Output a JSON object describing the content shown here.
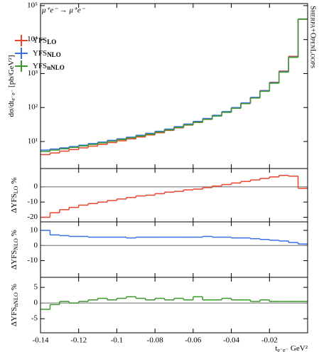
{
  "chart_data": [
    {
      "type": "histogram",
      "log": true,
      "process": "μ⁺e⁻ → μ⁺e⁻",
      "watermark": "Sherpa+OpenLoops",
      "ylabel": {
        "text": "dσ/dt",
        "subscript": "e⁻e⁻",
        "suffix": "[pb/GeV²]"
      },
      "xlabel": {
        "text": "t",
        "subscript": "e⁻e⁻",
        "suffix": "GeV²"
      },
      "bins": [
        -0.14,
        -0.135,
        -0.13,
        -0.125,
        -0.12,
        -0.115,
        -0.11,
        -0.105,
        -0.1,
        -0.095,
        -0.09,
        -0.085,
        -0.08,
        -0.075,
        -0.07,
        -0.065,
        -0.06,
        -0.055,
        -0.05,
        -0.045,
        -0.04,
        -0.035,
        -0.03,
        -0.025,
        -0.02,
        -0.015,
        -0.01,
        -0.005,
        0
      ],
      "xlim": [
        -0.14,
        0
      ],
      "xticks": [
        -0.14,
        -0.12,
        -0.1,
        -0.08,
        -0.06,
        -0.04,
        -0.02
      ],
      "ylim": [
        1.6,
        115000
      ],
      "yticks": [
        {
          "value": 10,
          "label": "10¹"
        },
        {
          "value": 100,
          "label": "10²"
        },
        {
          "value": 1000,
          "label": "10³"
        },
        {
          "value": 10000,
          "label": "10⁴"
        },
        {
          "value": 100000,
          "label": "10⁵"
        }
      ],
      "legend": "upper left",
      "series": [
        {
          "name": "YFS",
          "subscript": "LO",
          "color": "#e8452c",
          "values": [
            4.1,
            4.6,
            5.2,
            5.8,
            6.5,
            7.3,
            8.2,
            9.3,
            10.5,
            11.9,
            13.6,
            15.6,
            18.1,
            21.2,
            25.2,
            30.4,
            36.4,
            44.8,
            56.3,
            73.1,
            97.4,
            134.6,
            198.6,
            316.5,
            553.8,
            1182.5,
            3210,
            39600
          ]
        },
        {
          "name": "YFS",
          "subscript": "NLO",
          "color": "#3a6fe8",
          "values": [
            5.6,
            6.0,
            6.5,
            7.1,
            7.8,
            8.7,
            9.6,
            10.8,
            12.0,
            13.4,
            15.3,
            17.4,
            20,
            23.2,
            27.4,
            32.7,
            39,
            47.7,
            59.1,
            76,
            99.8,
            136.5,
            198.6,
            312,
            538.2,
            1133,
            3060,
            40400
          ]
        },
        {
          "name": "YFS",
          "subscript": "nNLO",
          "color": "#3a9a2a",
          "values": [
            5.1,
            5.6,
            6.1,
            6.7,
            7.4,
            8.2,
            9.1,
            10.2,
            11.4,
            12.8,
            14.5,
            16.5,
            19,
            22,
            26,
            31,
            37,
            45,
            56,
            72,
            95,
            130,
            190,
            300,
            520,
            1100,
            3000,
            40000
          ]
        }
      ]
    },
    {
      "type": "histogram",
      "ylabel": {
        "text": "ΔYFS",
        "subscript": "LO",
        "suffix": "%"
      },
      "ylim": [
        -23,
        12
      ],
      "yticks": [
        -20,
        -10,
        0
      ],
      "color": "#e8452c",
      "values": [
        -20,
        -17,
        -15,
        -13.5,
        -12,
        -11,
        -10,
        -9,
        -8,
        -7,
        -6,
        -5.5,
        -4.5,
        -3.5,
        -3,
        -2,
        -1.5,
        -0.5,
        0.5,
        1.5,
        2.5,
        3.5,
        4.5,
        5.5,
        6.5,
        7.5,
        7,
        -1
      ]
    },
    {
      "type": "histogram",
      "ylabel": {
        "text": "ΔYFS",
        "subscript": "NLO",
        "suffix": "%"
      },
      "ylim": [
        -21,
        15.6
      ],
      "yticks": [
        -10,
        0,
        10
      ],
      "color": "#3a6fe8",
      "values": [
        10,
        7,
        6.5,
        6,
        6,
        5.5,
        5.5,
        5.5,
        5.5,
        5,
        5.5,
        5.5,
        5.5,
        5.5,
        5.5,
        5.5,
        5.5,
        6,
        5.5,
        5.5,
        5,
        5,
        4.5,
        4,
        3.5,
        3,
        2,
        1
      ]
    },
    {
      "type": "histogram",
      "ylabel": {
        "text": "ΔYFS",
        "subscript": "nNLO",
        "suffix": "%"
      },
      "ylim": [
        -9.5,
        8.2
      ],
      "yticks": [
        -5,
        0,
        5
      ],
      "color": "#3a9a2a",
      "values": [
        -2,
        -0.5,
        0.5,
        0,
        0.5,
        1,
        1.5,
        1,
        1.5,
        2,
        1.5,
        1,
        1.5,
        1,
        1.5,
        1,
        2,
        1,
        1,
        1.5,
        1,
        1,
        0.5,
        1,
        0.5,
        0.5,
        0.5,
        0.5
      ]
    }
  ]
}
